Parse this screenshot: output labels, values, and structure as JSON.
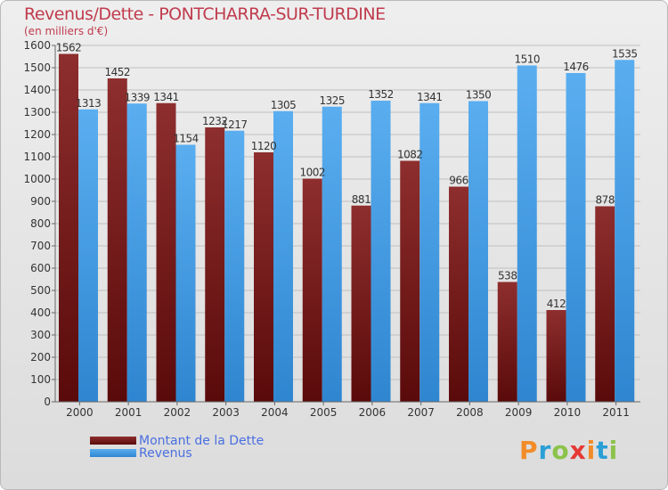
{
  "title": "Revenus/Dette - PONTCHARRA-SUR-TURDINE",
  "subtitle": "(en milliers d'€)",
  "logo": {
    "text": "Proxiti",
    "colors": [
      "#f28c28",
      "#2a9fd6",
      "#8bc34a",
      "#e53935",
      "#f28c28",
      "#2a9fd6",
      "#8bc34a"
    ]
  },
  "colors": {
    "dette_top": "#8e2e2e",
    "dette_bottom": "#5a0a0a",
    "revenus_top": "#5aaef0",
    "revenus_bottom": "#2f86d0",
    "grid": "#bfbfbf",
    "axis_text": "#333333",
    "title": "#c03c4e",
    "legend_text": "#4a6fe0"
  },
  "chart_data": {
    "type": "bar",
    "title": "Revenus/Dette - PONTCHARRA-SUR-TURDINE",
    "ylabel": "(en milliers d'€)",
    "xlabel": "",
    "ylim": [
      0,
      1600
    ],
    "yticks": [
      0,
      100,
      200,
      300,
      400,
      500,
      600,
      700,
      800,
      900,
      1000,
      1100,
      1200,
      1300,
      1400,
      1500,
      1600
    ],
    "categories": [
      "2000",
      "2001",
      "2002",
      "2003",
      "2004",
      "2005",
      "2006",
      "2007",
      "2008",
      "2009",
      "2010",
      "2011"
    ],
    "series": [
      {
        "name": "Montant de la Dette",
        "values": [
          1562,
          1452,
          1341,
          1232,
          1120,
          1002,
          881,
          1082,
          966,
          538,
          412,
          878
        ]
      },
      {
        "name": "Revenus",
        "values": [
          1313,
          1339,
          1154,
          1217,
          1305,
          1325,
          1352,
          1341,
          1350,
          1510,
          1476,
          1535
        ]
      }
    ],
    "grid": true,
    "legend": "bottom-left"
  }
}
